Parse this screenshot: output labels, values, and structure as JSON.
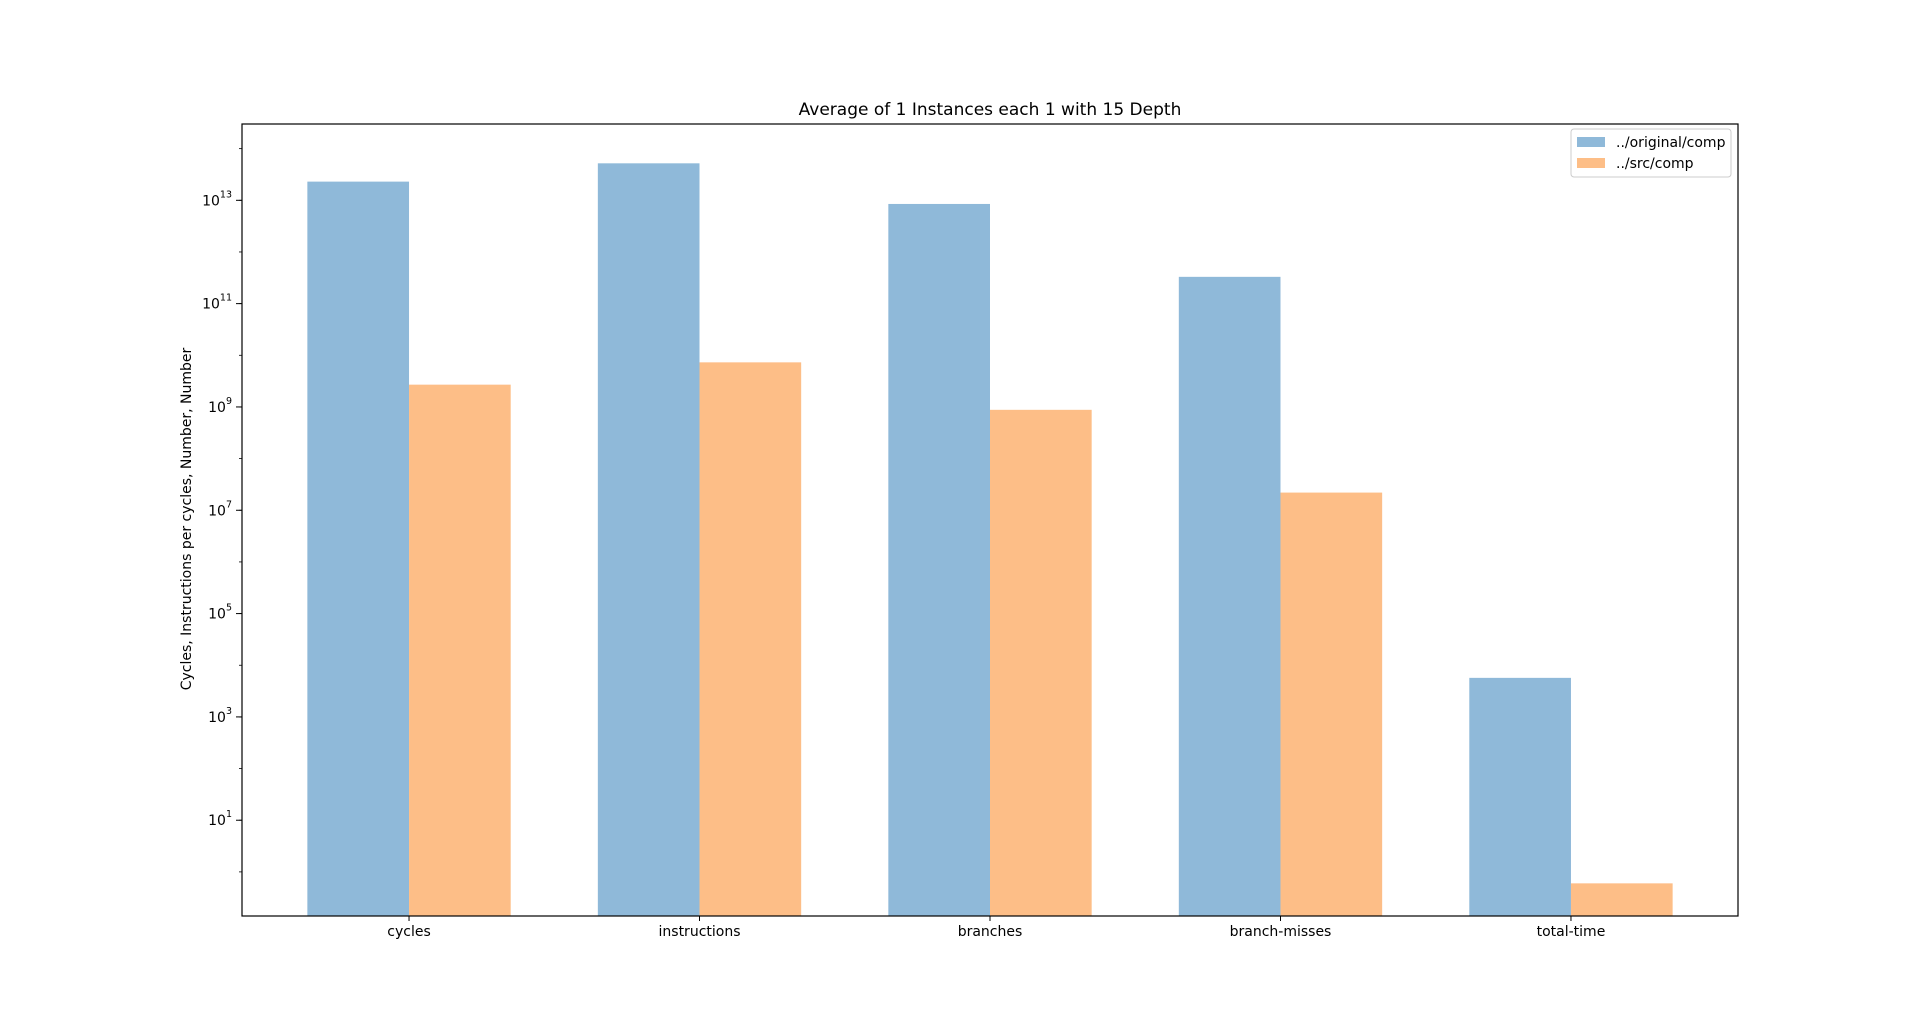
{
  "chart_data": {
    "type": "bar",
    "title": "Average of 1 Instances each 1 with 15 Depth",
    "xlabel": "",
    "ylabel": "Cycles, Instructions per cycles, Number, Number",
    "yscale": "log",
    "ylim": [
      0.14,
      300000000000000
    ],
    "yticks": [
      {
        "value": 10,
        "base": "10",
        "exp": "1"
      },
      {
        "value": 1000,
        "base": "10",
        "exp": "3"
      },
      {
        "value": 100000,
        "base": "10",
        "exp": "5"
      },
      {
        "value": 10000000,
        "base": "10",
        "exp": "7"
      },
      {
        "value": 1000000000,
        "base": "10",
        "exp": "9"
      },
      {
        "value": 100000000000,
        "base": "10",
        "exp": "11"
      },
      {
        "value": 10000000000000,
        "base": "10",
        "exp": "13"
      }
    ],
    "categories": [
      "cycles",
      "instructions",
      "branches",
      "branch-misses",
      "total-time"
    ],
    "series": [
      {
        "name": "../original/comp",
        "color": "#8fb9d9",
        "values": [
          23000000000000,
          52000000000000,
          8500000000000,
          330000000000,
          5700
        ]
      },
      {
        "name": "../src/comp",
        "color": "#fdbe87",
        "values": [
          2700000000,
          7300000000,
          880000000,
          22000000,
          0.6
        ]
      }
    ],
    "grid": false,
    "legend_position": "top-right"
  }
}
